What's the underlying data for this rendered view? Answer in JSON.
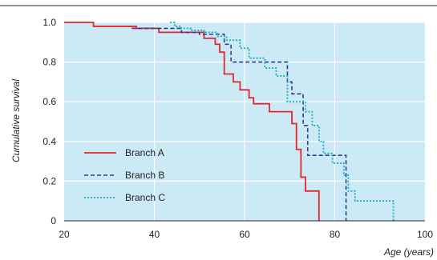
{
  "chart_data": {
    "type": "line",
    "subtype": "step",
    "title": "",
    "xlabel": "Age (years)",
    "ylabel": "Cumulative survival",
    "xlim": [
      20,
      100
    ],
    "ylim": [
      0,
      1.0
    ],
    "xticks": [
      "20",
      "40",
      "60",
      "80",
      "100"
    ],
    "yticks": [
      "0",
      "0.2",
      "0.4",
      "0.6",
      "0.8",
      "1.0"
    ],
    "grid": true,
    "legend_position": "bottom-left",
    "colors": {
      "background": "#cce9f6",
      "grid": "#ffffff",
      "branch_a": "#e3262b",
      "branch_b": "#2c3e91",
      "branch_c": "#19aebb",
      "rule": "#231f20"
    },
    "series": [
      {
        "name": "Branch A",
        "style": "solid",
        "x": [
          20,
          26.5,
          36,
          41,
          51,
          53.5,
          54.5,
          55.5,
          57.5,
          59,
          61,
          62,
          65.5,
          70.5,
          71.5,
          72.5,
          73.5,
          76.5
        ],
        "y": [
          1.0,
          0.98,
          0.97,
          0.95,
          0.92,
          0.89,
          0.85,
          0.74,
          0.7,
          0.66,
          0.62,
          0.59,
          0.55,
          0.49,
          0.36,
          0.22,
          0.15,
          0.0
        ]
      },
      {
        "name": "Branch B",
        "style": "dashed",
        "x": [
          35,
          46,
          50,
          55.5,
          57,
          69.5,
          70.5,
          71.5,
          73,
          74,
          75,
          78,
          82.5
        ],
        "y": [
          0.97,
          0.95,
          0.94,
          0.89,
          0.8,
          0.7,
          0.64,
          0.64,
          0.48,
          0.33,
          0.33,
          0.33,
          0.0
        ]
      },
      {
        "name": "Branch C",
        "style": "dotted",
        "x": [
          43.5,
          44.5,
          46,
          48,
          51,
          54,
          56,
          59,
          61,
          64.5,
          67,
          69.5,
          71.5,
          73.5,
          75,
          76.5,
          77.5,
          79.5,
          82,
          83,
          84.5,
          93
        ],
        "y": [
          1.0,
          0.98,
          0.97,
          0.96,
          0.95,
          0.93,
          0.91,
          0.87,
          0.82,
          0.77,
          0.73,
          0.6,
          0.6,
          0.55,
          0.48,
          0.4,
          0.34,
          0.29,
          0.23,
          0.15,
          0.1,
          0.0
        ]
      }
    ]
  }
}
